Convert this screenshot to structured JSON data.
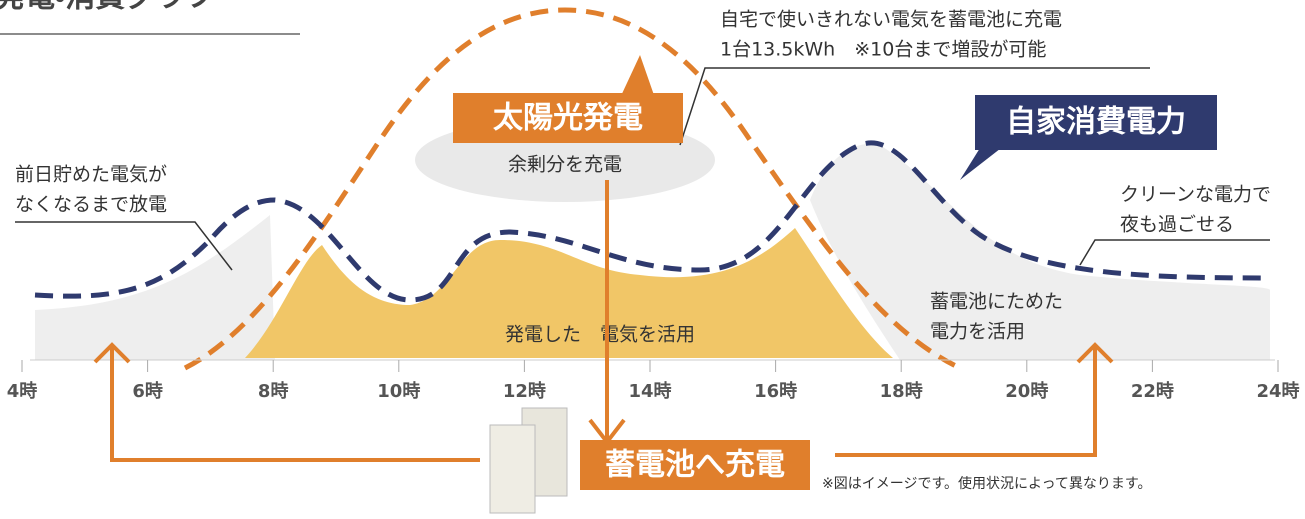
{
  "title": "発電・消費グラフ",
  "top_note": {
    "line1": "自宅で使いきれない電気を蓄電池に充電",
    "line2": "1台13.5kWh　※10台まで増設が可能"
  },
  "solar_label": "太陽光発電",
  "surplus_label": "余剰分を充電",
  "consumption_label": "自家消費電力",
  "left_note": {
    "line1": "前日貯めた電気が",
    "line2": "なくなるまで放電"
  },
  "right_note": {
    "line1": "クリーンな電力で",
    "line2": "夜も過ごせる"
  },
  "battery_use_note": {
    "line1": "蓄電池にためた",
    "line2": "電力を活用"
  },
  "solar_use_note": "発電した　電気を活用",
  "charge_label": "蓄電池へ充電",
  "disclaimer": "※図はイメージです。使用状況によって異なります。",
  "x_axis": {
    "ticks": [
      "4時",
      "6時",
      "8時",
      "10時",
      "12時",
      "14時",
      "16時",
      "18時",
      "20時",
      "22時",
      "24時"
    ]
  }
}
